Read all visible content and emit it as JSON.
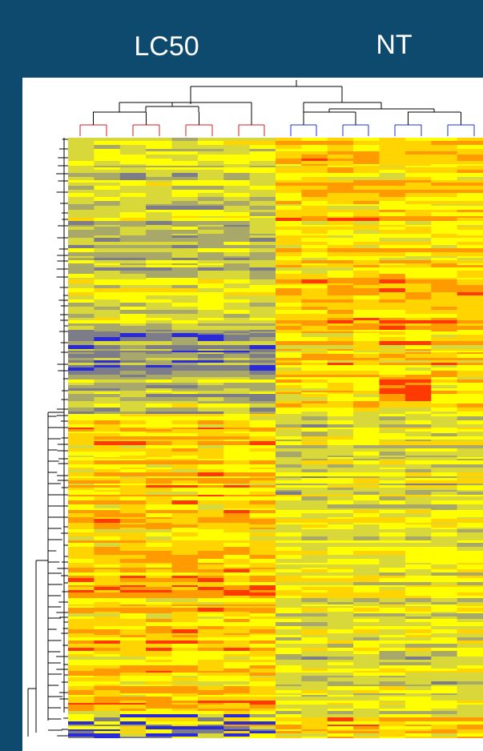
{
  "header": {
    "labels": [
      "LC50",
      "NT"
    ]
  }
}
